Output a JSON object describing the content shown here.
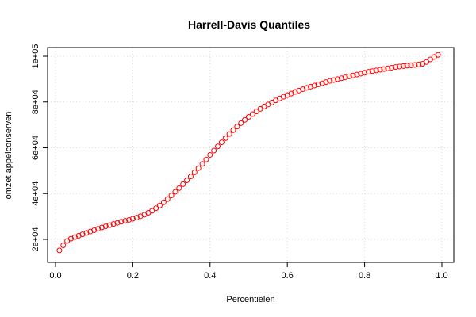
{
  "chart_data": {
    "type": "scatter",
    "title": "Harrell-Davis Quantiles",
    "xlabel": "Percentielen",
    "ylabel": "omzet appelconserven",
    "xlim": [
      0,
      1
    ],
    "ylim": [
      13000,
      104000
    ],
    "grid": true,
    "point_color": "#ff0000",
    "x_ticks": [
      {
        "value": 0.0,
        "label": "0.0"
      },
      {
        "value": 0.2,
        "label": "0.2"
      },
      {
        "value": 0.4,
        "label": "0.4"
      },
      {
        "value": 0.6,
        "label": "0.6"
      },
      {
        "value": 0.8,
        "label": "0.8"
      },
      {
        "value": 1.0,
        "label": "1.0"
      }
    ],
    "y_ticks": [
      {
        "value": 20000,
        "label": "2e+04"
      },
      {
        "value": 40000,
        "label": "4e+04"
      },
      {
        "value": 60000,
        "label": "6e+04"
      },
      {
        "value": 80000,
        "label": "8e+04"
      },
      {
        "value": 100000,
        "label": "1e+05"
      }
    ],
    "x": [
      0.01,
      0.02,
      0.03,
      0.04,
      0.05,
      0.06,
      0.07,
      0.08,
      0.09,
      0.1,
      0.11,
      0.12,
      0.13,
      0.14,
      0.15,
      0.16,
      0.17,
      0.18,
      0.19,
      0.2,
      0.21,
      0.22,
      0.23,
      0.24,
      0.25,
      0.26,
      0.27,
      0.28,
      0.29,
      0.3,
      0.31,
      0.32,
      0.33,
      0.34,
      0.35,
      0.36,
      0.37,
      0.38,
      0.39,
      0.4,
      0.41,
      0.42,
      0.43,
      0.44,
      0.45,
      0.46,
      0.47,
      0.48,
      0.49,
      0.5,
      0.51,
      0.52,
      0.53,
      0.54,
      0.55,
      0.56,
      0.57,
      0.58,
      0.59,
      0.6,
      0.61,
      0.62,
      0.63,
      0.64,
      0.65,
      0.66,
      0.67,
      0.68,
      0.69,
      0.7,
      0.71,
      0.72,
      0.73,
      0.74,
      0.75,
      0.76,
      0.77,
      0.78,
      0.79,
      0.8,
      0.81,
      0.82,
      0.83,
      0.84,
      0.85,
      0.86,
      0.87,
      0.88,
      0.89,
      0.9,
      0.91,
      0.92,
      0.93,
      0.94,
      0.95,
      0.96,
      0.97,
      0.98,
      0.99
    ],
    "y": [
      15200,
      17400,
      19300,
      20300,
      21000,
      21600,
      22200,
      22800,
      23400,
      24000,
      24600,
      25200,
      25700,
      26200,
      26700,
      27200,
      27700,
      28100,
      28500,
      29000,
      29500,
      30100,
      30800,
      31600,
      32500,
      33600,
      34800,
      36200,
      37600,
      39200,
      40800,
      42400,
      44100,
      45800,
      47500,
      49300,
      51100,
      53000,
      54900,
      56900,
      58800,
      60600,
      62400,
      64200,
      66000,
      67700,
      69300,
      70800,
      72200,
      73500,
      74700,
      75900,
      77000,
      78000,
      78900,
      79800,
      80700,
      81500,
      82300,
      83000,
      83700,
      84400,
      85000,
      85600,
      86200,
      86700,
      87200,
      87700,
      88200,
      88700,
      89200,
      89600,
      90000,
      90400,
      90800,
      91200,
      91600,
      92000,
      92400,
      92800,
      93200,
      93500,
      93800,
      94100,
      94400,
      94700,
      95000,
      95300,
      95500,
      95700,
      95900,
      96000,
      96200,
      96400,
      96700,
      97500,
      98600,
      99700,
      100600
    ]
  }
}
